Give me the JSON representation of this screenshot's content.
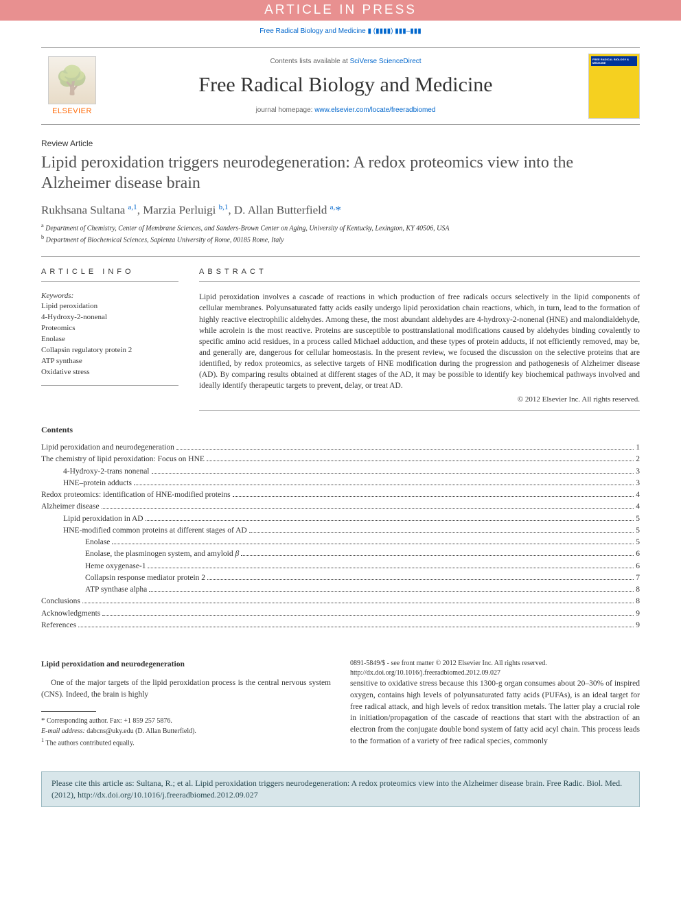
{
  "banner": "ARTICLE IN PRESS",
  "journal_ref": "Free Radical Biology and Medicine ▮ (▮▮▮▮) ▮▮▮–▮▮▮",
  "header": {
    "contents_prefix": "Contents lists available at ",
    "contents_link": "SciVerse ScienceDirect",
    "journal_name": "Free Radical Biology and Medicine",
    "homepage_prefix": "journal homepage: ",
    "homepage_link": "www.elsevier.com/locate/freeradbiomed",
    "publisher": "ELSEVIER",
    "cover_title": "FREE RADICAL BIOLOGY & MEDICINE"
  },
  "article_type": "Review Article",
  "title": "Lipid peroxidation triggers neurodegeneration: A redox proteomics view into the Alzheimer disease brain",
  "authors_html": "Rukhsana Sultana <sup>a,1</sup>, Marzia Perluigi <sup>b,1</sup>, D. Allan Butterfield <sup>a,</sup><span class='star'>*</span>",
  "affiliations": {
    "a": "Department of Chemistry, Center of Membrane Sciences, and Sanders-Brown Center on Aging, University of Kentucky, Lexington, KY 40506, USA",
    "b": "Department of Biochemical Sciences, Sapienza University of Rome, 00185 Rome, Italy"
  },
  "labels": {
    "article_info": "article info",
    "abstract": "abstract",
    "keywords": "Keywords:",
    "contents": "Contents"
  },
  "keywords": [
    "Lipid peroxidation",
    "4-Hydroxy-2-nonenal",
    "Proteomics",
    "Enolase",
    "Collapsin regulatory protein 2",
    "ATP synthase",
    "Oxidative stress"
  ],
  "abstract": "Lipid peroxidation involves a cascade of reactions in which production of free radicals occurs selectively in the lipid components of cellular membranes. Polyunsaturated fatty acids easily undergo lipid peroxidation chain reactions, which, in turn, lead to the formation of highly reactive electrophilic aldehydes. Among these, the most abundant aldehydes are 4-hydroxy-2-nonenal (HNE) and malondialdehyde, while acrolein is the most reactive. Proteins are susceptible to posttranslational modifications caused by aldehydes binding covalently to specific amino acid residues, in a process called Michael adduction, and these types of protein adducts, if not efficiently removed, may be, and generally are, dangerous for cellular homeostasis. In the present review, we focused the discussion on the selective proteins that are identified, by redox proteomics, as selective targets of HNE modification during the progression and pathogenesis of Alzheimer disease (AD). By comparing results obtained at different stages of the AD, it may be possible to identify key biochemical pathways involved and ideally identify therapeutic targets to prevent, delay, or treat AD.",
  "copyright_line": "© 2012 Elsevier Inc. All rights reserved.",
  "toc": [
    {
      "label": "Lipid peroxidation and neurodegeneration",
      "page": "1",
      "indent": 0
    },
    {
      "label": "The chemistry of lipid peroxidation: Focus on HNE",
      "page": "2",
      "indent": 0
    },
    {
      "label": "4-Hydroxy-2-trans nonenal",
      "page": "3",
      "indent": 1
    },
    {
      "label": "HNE–protein adducts",
      "page": "3",
      "indent": 1
    },
    {
      "label": "Redox proteomics: identification of HNE-modified proteins",
      "page": "4",
      "indent": 0
    },
    {
      "label": "Alzheimer disease",
      "page": "4",
      "indent": 0
    },
    {
      "label": "Lipid peroxidation in AD",
      "page": "5",
      "indent": 1
    },
    {
      "label": "HNE-modified common proteins at different stages of AD",
      "page": "5",
      "indent": 1
    },
    {
      "label": "Enolase",
      "page": "5",
      "indent": 2
    },
    {
      "label": "Enolase, the plasminogen system, and amyloid β",
      "page": "6",
      "indent": 2
    },
    {
      "label": "Heme oxygenase-1",
      "page": "6",
      "indent": 2
    },
    {
      "label": "Collapsin response mediator protein 2",
      "page": "7",
      "indent": 2
    },
    {
      "label": "ATP synthase alpha",
      "page": "8",
      "indent": 2
    },
    {
      "label": "Conclusions",
      "page": "8",
      "indent": 0
    },
    {
      "label": "Acknowledgments",
      "page": "9",
      "indent": 0
    },
    {
      "label": "References",
      "page": "9",
      "indent": 0
    }
  ],
  "body": {
    "heading": "Lipid peroxidation and neurodegeneration",
    "para1": "One of the major targets of the lipid peroxidation process is the central nervous system (CNS). Indeed, the brain is highly",
    "para2": "sensitive to oxidative stress because this 1300-g organ consumes about 20–30% of inspired oxygen, contains high levels of polyunsaturated fatty acids (PUFAs), is an ideal target for free radical attack, and high levels of redox transition metals. The latter play a crucial role in initiation/propagation of the cascade of reactions that start with the abstraction of an electron from the conjugate double bond system of fatty acid acyl chain. This process leads to the formation of a variety of free radical species, commonly"
  },
  "footnotes": {
    "corr": "Corresponding author. Fax: +1 859 257 5876.",
    "email_label": "E-mail address:",
    "email": "dabcns@uky.edu (D. Allan Butterfield).",
    "contrib": "The authors contributed equally."
  },
  "frontmatter": {
    "line1": "0891-5849/$ - see front matter © 2012 Elsevier Inc. All rights reserved.",
    "doi": "http://dx.doi.org/10.1016/j.freeradbiomed.2012.09.027"
  },
  "citebox": "Please cite this article as: Sultana, R.; et al. Lipid peroxidation triggers neurodegeneration: A redox proteomics view into the Alzheimer disease brain. Free Radic. Biol. Med. (2012), http://dx.doi.org/10.1016/j.freeradbiomed.2012.09.027"
}
